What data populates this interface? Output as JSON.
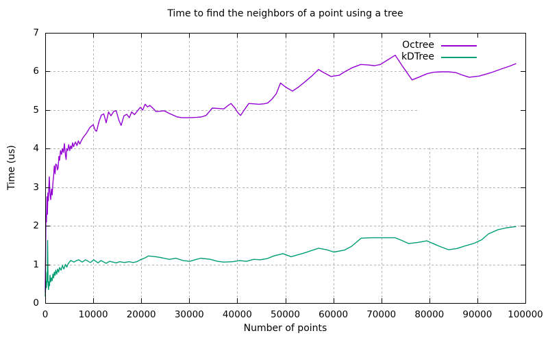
{
  "chart_data": {
    "type": "line",
    "title": "Time to find the neighbors of a point using a tree",
    "xlabel": "Number of points",
    "ylabel": "Time (us)",
    "xlim": [
      0,
      100000
    ],
    "ylim": [
      0,
      7
    ],
    "grid": true,
    "legend_position": "top-right-inside",
    "x_ticks": {
      "values": [
        0,
        10000,
        20000,
        30000,
        40000,
        50000,
        60000,
        70000,
        80000,
        90000,
        100000
      ],
      "labels": [
        "0",
        "10000",
        "20000",
        "30000",
        "40000",
        "50000",
        "60000",
        "70000",
        "80000",
        "90000",
        "100000"
      ]
    },
    "y_ticks": {
      "values": [
        0,
        1,
        2,
        3,
        4,
        5,
        6,
        7
      ],
      "labels": [
        "0",
        "1",
        "2",
        "3",
        "4",
        "5",
        "6",
        "7"
      ]
    },
    "colors": {
      "background": "#ffffff",
      "axis": "#000000",
      "text": "#000000",
      "grid": "#b4b4b4"
    },
    "series": [
      {
        "name": "Octree",
        "color": "#9400d3",
        "points": [
          [
            0,
            0.28
          ],
          [
            150,
            2.3
          ],
          [
            250,
            2.1
          ],
          [
            350,
            2.75
          ],
          [
            450,
            2.3
          ],
          [
            550,
            2.85
          ],
          [
            650,
            2.65
          ],
          [
            750,
            3.0
          ],
          [
            860,
            3.27
          ],
          [
            950,
            2.9
          ],
          [
            1140,
            2.68
          ],
          [
            1300,
            2.95
          ],
          [
            1450,
            2.8
          ],
          [
            1600,
            3.1
          ],
          [
            1750,
            3.3
          ],
          [
            1900,
            3.55
          ],
          [
            2050,
            3.35
          ],
          [
            2200,
            3.6
          ],
          [
            2400,
            3.58
          ],
          [
            2550,
            3.45
          ],
          [
            2700,
            3.5
          ],
          [
            2850,
            3.8
          ],
          [
            3000,
            3.7
          ],
          [
            3200,
            3.95
          ],
          [
            3400,
            3.85
          ],
          [
            3600,
            4.0
          ],
          [
            3800,
            3.9
          ],
          [
            4000,
            4.13
          ],
          [
            4200,
            3.85
          ],
          [
            4350,
            3.72
          ],
          [
            4500,
            4.0
          ],
          [
            4700,
            3.95
          ],
          [
            4900,
            4.1
          ],
          [
            5100,
            3.95
          ],
          [
            5300,
            4.07
          ],
          [
            5500,
            4.0
          ],
          [
            5700,
            4.15
          ],
          [
            5900,
            4.05
          ],
          [
            6100,
            4.12
          ],
          [
            6300,
            4.17
          ],
          [
            6600,
            4.08
          ],
          [
            6900,
            4.2
          ],
          [
            7200,
            4.12
          ],
          [
            7500,
            4.2
          ],
          [
            7800,
            4.27
          ],
          [
            8100,
            4.32
          ],
          [
            8600,
            4.4
          ],
          [
            9300,
            4.55
          ],
          [
            10000,
            4.62
          ],
          [
            10400,
            4.48
          ],
          [
            10700,
            4.45
          ],
          [
            11200,
            4.7
          ],
          [
            11700,
            4.87
          ],
          [
            12200,
            4.9
          ],
          [
            12700,
            4.67
          ],
          [
            13200,
            4.95
          ],
          [
            13700,
            4.85
          ],
          [
            14300,
            4.97
          ],
          [
            14800,
            4.98
          ],
          [
            15300,
            4.75
          ],
          [
            15800,
            4.6
          ],
          [
            16400,
            4.85
          ],
          [
            17000,
            4.89
          ],
          [
            17500,
            4.8
          ],
          [
            18000,
            4.95
          ],
          [
            18600,
            4.88
          ],
          [
            19100,
            4.96
          ],
          [
            19800,
            5.07
          ],
          [
            20300,
            5.0
          ],
          [
            20800,
            5.15
          ],
          [
            21300,
            5.08
          ],
          [
            21800,
            5.12
          ],
          [
            22400,
            5.05
          ],
          [
            23100,
            4.96
          ],
          [
            24000,
            4.97
          ],
          [
            24800,
            4.98
          ],
          [
            25700,
            4.92
          ],
          [
            26600,
            4.87
          ],
          [
            27500,
            4.82
          ],
          [
            28500,
            4.8
          ],
          [
            30000,
            4.8
          ],
          [
            31500,
            4.81
          ],
          [
            32500,
            4.82
          ],
          [
            33500,
            4.86
          ],
          [
            34800,
            5.05
          ],
          [
            36000,
            5.04
          ],
          [
            37200,
            5.03
          ],
          [
            38100,
            5.12
          ],
          [
            38700,
            5.17
          ],
          [
            39500,
            5.05
          ],
          [
            40200,
            4.92
          ],
          [
            40700,
            4.86
          ],
          [
            41500,
            5.01
          ],
          [
            42400,
            5.17
          ],
          [
            43500,
            5.16
          ],
          [
            44500,
            5.15
          ],
          [
            45500,
            5.16
          ],
          [
            46300,
            5.18
          ],
          [
            47200,
            5.28
          ],
          [
            48100,
            5.42
          ],
          [
            49000,
            5.7
          ],
          [
            50000,
            5.6
          ],
          [
            51500,
            5.49
          ],
          [
            52800,
            5.6
          ],
          [
            54000,
            5.72
          ],
          [
            55500,
            5.88
          ],
          [
            56900,
            6.05
          ],
          [
            58000,
            5.97
          ],
          [
            59500,
            5.87
          ],
          [
            61200,
            5.9
          ],
          [
            62500,
            6.0
          ],
          [
            64000,
            6.1
          ],
          [
            65700,
            6.18
          ],
          [
            67000,
            6.17
          ],
          [
            68600,
            6.15
          ],
          [
            69800,
            6.18
          ],
          [
            71200,
            6.29
          ],
          [
            72900,
            6.42
          ],
          [
            74500,
            6.12
          ],
          [
            76400,
            5.78
          ],
          [
            78000,
            5.86
          ],
          [
            79500,
            5.94
          ],
          [
            80900,
            5.98
          ],
          [
            82500,
            5.99
          ],
          [
            84000,
            5.99
          ],
          [
            85500,
            5.97
          ],
          [
            87000,
            5.9
          ],
          [
            88300,
            5.85
          ],
          [
            90400,
            5.88
          ],
          [
            92900,
            5.97
          ],
          [
            95100,
            6.07
          ],
          [
            96800,
            6.14
          ],
          [
            98000,
            6.2
          ]
        ]
      },
      {
        "name": "kDTree",
        "color": "#009e73",
        "points": [
          [
            0,
            0.18
          ],
          [
            150,
            0.55
          ],
          [
            250,
            0.4
          ],
          [
            350,
            0.8
          ],
          [
            430,
            0.55
          ],
          [
            500,
            1.62
          ],
          [
            600,
            0.5
          ],
          [
            700,
            0.35
          ],
          [
            800,
            0.55
          ],
          [
            900,
            0.45
          ],
          [
            1000,
            0.72
          ],
          [
            1150,
            0.55
          ],
          [
            1300,
            0.65
          ],
          [
            1450,
            0.58
          ],
          [
            1600,
            0.75
          ],
          [
            1750,
            0.65
          ],
          [
            1900,
            0.8
          ],
          [
            2050,
            0.72
          ],
          [
            2200,
            0.85
          ],
          [
            2400,
            0.75
          ],
          [
            2600,
            0.88
          ],
          [
            2800,
            0.8
          ],
          [
            3000,
            0.92
          ],
          [
            3300,
            0.85
          ],
          [
            3600,
            0.97
          ],
          [
            3900,
            0.88
          ],
          [
            4200,
            1.0
          ],
          [
            4500,
            0.93
          ],
          [
            4800,
            1.02
          ],
          [
            5300,
            1.1
          ],
          [
            6000,
            1.06
          ],
          [
            6500,
            1.1
          ],
          [
            7000,
            1.12
          ],
          [
            7700,
            1.06
          ],
          [
            8400,
            1.12
          ],
          [
            9400,
            1.05
          ],
          [
            10100,
            1.12
          ],
          [
            11000,
            1.04
          ],
          [
            11600,
            1.1
          ],
          [
            12700,
            1.03
          ],
          [
            13400,
            1.08
          ],
          [
            14800,
            1.04
          ],
          [
            15500,
            1.07
          ],
          [
            16500,
            1.05
          ],
          [
            17500,
            1.07
          ],
          [
            18300,
            1.05
          ],
          [
            19100,
            1.07
          ],
          [
            19800,
            1.12
          ],
          [
            20800,
            1.17
          ],
          [
            21500,
            1.22
          ],
          [
            23000,
            1.2
          ],
          [
            24400,
            1.17
          ],
          [
            25800,
            1.13
          ],
          [
            27200,
            1.16
          ],
          [
            28700,
            1.1
          ],
          [
            30100,
            1.08
          ],
          [
            31500,
            1.13
          ],
          [
            32400,
            1.16
          ],
          [
            34400,
            1.13
          ],
          [
            35900,
            1.08
          ],
          [
            37200,
            1.06
          ],
          [
            39100,
            1.07
          ],
          [
            40500,
            1.1
          ],
          [
            41900,
            1.08
          ],
          [
            43400,
            1.13
          ],
          [
            44800,
            1.12
          ],
          [
            46200,
            1.15
          ],
          [
            47600,
            1.22
          ],
          [
            49500,
            1.28
          ],
          [
            51200,
            1.2
          ],
          [
            53800,
            1.29
          ],
          [
            56900,
            1.42
          ],
          [
            58600,
            1.38
          ],
          [
            60100,
            1.32
          ],
          [
            62300,
            1.37
          ],
          [
            63800,
            1.47
          ],
          [
            65800,
            1.68
          ],
          [
            68000,
            1.69
          ],
          [
            70500,
            1.69
          ],
          [
            72900,
            1.69
          ],
          [
            74300,
            1.62
          ],
          [
            75700,
            1.54
          ],
          [
            77600,
            1.57
          ],
          [
            79500,
            1.61
          ],
          [
            81900,
            1.48
          ],
          [
            84000,
            1.38
          ],
          [
            85700,
            1.41
          ],
          [
            87200,
            1.47
          ],
          [
            89400,
            1.55
          ],
          [
            90900,
            1.64
          ],
          [
            92300,
            1.79
          ],
          [
            94300,
            1.9
          ],
          [
            96100,
            1.95
          ],
          [
            98000,
            1.98
          ]
        ]
      }
    ]
  }
}
